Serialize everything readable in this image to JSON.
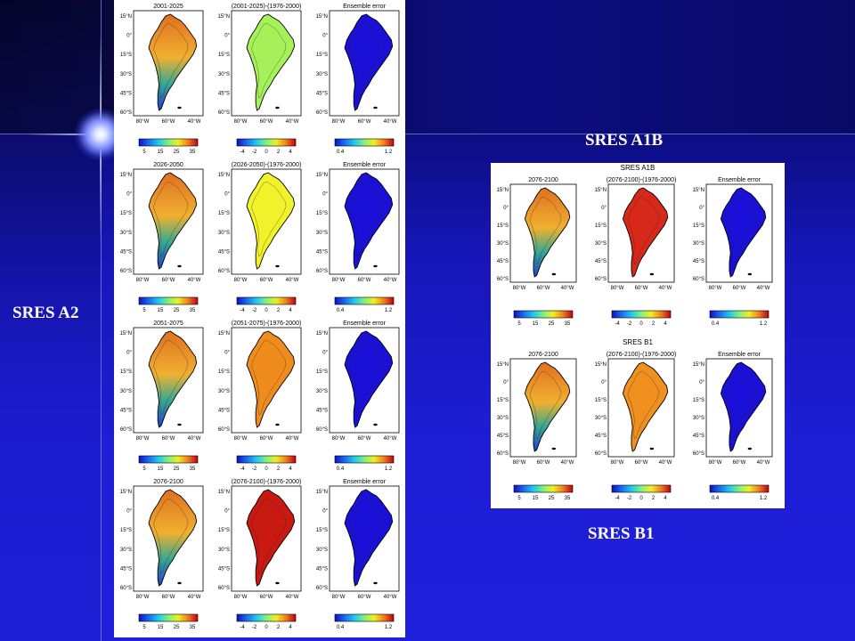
{
  "labels": {
    "a2": "SRES A2",
    "a1b": "SRES A1B",
    "b1": "SRES B1"
  },
  "panel_a2": {
    "rows": [
      {
        "titles": [
          "2001-2025",
          "(2001-2025)-(1976-2000)",
          "Ensemble error"
        ]
      },
      {
        "titles": [
          "2026-2050",
          "(2026-2050)-(1976-2000)",
          "Ensemble error"
        ]
      },
      {
        "titles": [
          "2051-2075",
          "(2051-2075)-(1976-2000)",
          "Ensemble error"
        ]
      },
      {
        "titles": [
          "2076-2100",
          "(2076-2100)-(1976-2000)",
          "Ensemble error"
        ]
      }
    ]
  },
  "panel_right": {
    "rows": [
      {
        "header": "SRES A1B",
        "titles": [
          "2076-2100",
          "(2076-2100)-(1976-2000)",
          "Ensemble error"
        ]
      },
      {
        "header": "SRES B1",
        "titles": [
          "2076-2100",
          "(2076-2100)-(1976-2000)",
          "Ensemble error"
        ]
      }
    ]
  },
  "lat_ticks": [
    "15°N",
    "0°",
    "15°S",
    "30°S",
    "45°S",
    "60°S"
  ],
  "lon_ticks": [
    "80°W",
    "60°W",
    "40°W"
  ],
  "colorbars": {
    "temperature": [
      "5",
      "15",
      "25",
      "35"
    ],
    "change": [
      "-4",
      "-2",
      "0",
      "2",
      "4"
    ],
    "error": [
      "0.4",
      "1.2"
    ]
  },
  "map_fills": {
    "a2": [
      [
        "temperature-gradient",
        "#a6f05a",
        "#1a10d8"
      ],
      [
        "temperature-gradient",
        "#f2f22a",
        "#1a10d8"
      ],
      [
        "temperature-gradient",
        "#f08c1e",
        "#1a10d8"
      ],
      [
        "temperature-gradient",
        "#c81a10",
        "#1a10d8"
      ]
    ],
    "right": [
      [
        "temperature-gradient",
        "#d8281a",
        "#1a10d8"
      ],
      [
        "temperature-gradient",
        "#f0901e",
        "#1a10d8"
      ]
    ]
  }
}
